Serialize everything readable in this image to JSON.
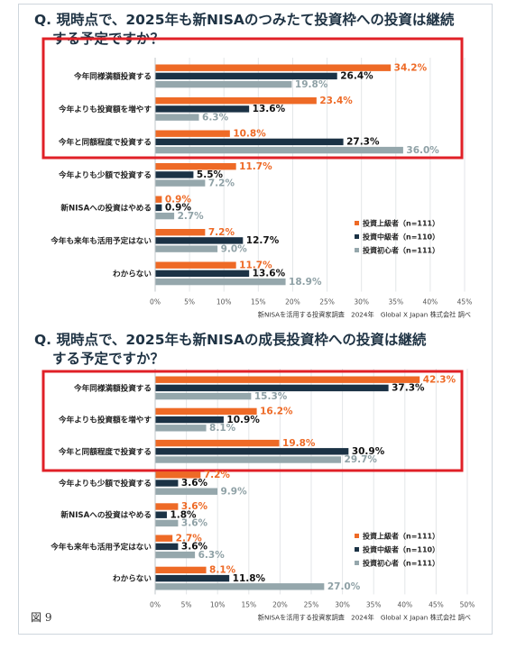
{
  "figure_label": "図 9",
  "colors": {
    "advanced": "#ee6a26",
    "intermediate": "#1b3245",
    "beginner": "#95a7ac",
    "highlight": "#e02027"
  },
  "chart_data": [
    {
      "type": "bar",
      "orientation": "horizontal",
      "title": "Q. 現時点で、2025年も新NISAのつみたて投資枠への投資は継続する予定ですか？",
      "title_lines": [
        "Q. 現時点で、2025年も新NISAのつみたて投資枠への投資は継続",
        "する予定ですか？"
      ],
      "categories": [
        "今年同様満額投資する",
        "今年よりも投資額を増やす",
        "今年と同額程度で投資する",
        "今年よりも少額で投資する",
        "新NISAへの投資はやめる",
        "今年も来年も活用予定はない",
        "わからない"
      ],
      "series": [
        {
          "name": "投資上級者（n=111）",
          "values": [
            34.2,
            23.4,
            10.8,
            11.7,
            0.9,
            7.2,
            11.7
          ],
          "labels": [
            "34.2%",
            "23.4%",
            "10.8%",
            "11.7%",
            "0.9%",
            "7.2%",
            "11.7%"
          ]
        },
        {
          "name": "投資中級者（n=110）",
          "values": [
            26.4,
            13.6,
            27.3,
            5.5,
            0.9,
            12.7,
            13.6
          ],
          "labels": [
            "26.4%",
            "13.6%",
            "27.3%",
            "5.5%",
            "0.9%",
            "12.7%",
            "13.6%"
          ]
        },
        {
          "name": "投資初心者（n=111）",
          "values": [
            19.8,
            6.3,
            36.0,
            7.2,
            2.7,
            9.0,
            18.9
          ],
          "labels": [
            "19.8%",
            "6.3%",
            "36.0%",
            "7.2%",
            "2.7%",
            "9.0%",
            "18.9%"
          ]
        }
      ],
      "xlim": [
        0,
        45
      ],
      "xticks": [
        "0%",
        "5%",
        "10%",
        "15%",
        "20%",
        "25%",
        "30%",
        "35%",
        "40%",
        "45%"
      ],
      "highlighted_categories": 3,
      "legend_position": "lower-right",
      "source": "新NISAを活用する投資家調査　2024年　Global X Japan 株式会社 調べ"
    },
    {
      "type": "bar",
      "orientation": "horizontal",
      "title": "Q. 現時点で、2025年も新NISAの成長投資枠への投資は継続する予定ですか？",
      "title_lines": [
        "Q. 現時点で、2025年も新NISAの成長投資枠への投資は継続",
        "する予定ですか？"
      ],
      "categories": [
        "今年同様満額投資する",
        "今年よりも投資額を増やす",
        "今年と同額程度で投資する",
        "今年よりも少額で投資する",
        "新NISAへの投資はやめる",
        "今年も来年も活用予定はない",
        "わからない"
      ],
      "series": [
        {
          "name": "投資上級者（n=111）",
          "values": [
            42.3,
            16.2,
            19.8,
            7.2,
            3.6,
            2.7,
            8.1
          ],
          "labels": [
            "42.3%",
            "16.2%",
            "19.8%",
            "7.2%",
            "3.6%",
            "2.7%",
            "8.1%"
          ]
        },
        {
          "name": "投資中級者（n=110）",
          "values": [
            37.3,
            10.9,
            30.9,
            3.6,
            1.8,
            3.6,
            11.8
          ],
          "labels": [
            "37.3%",
            "10.9%",
            "30.9%",
            "3.6%",
            "1.8%",
            "3.6%",
            "11.8%"
          ]
        },
        {
          "name": "投資初心者（n=111）",
          "values": [
            15.3,
            8.1,
            29.7,
            9.9,
            3.6,
            6.3,
            27.0
          ],
          "labels": [
            "15.3%",
            "8.1%",
            "29.7%",
            "9.9%",
            "3.6%",
            "6.3%",
            "27.0%"
          ]
        }
      ],
      "xlim": [
        0,
        50
      ],
      "xticks": [
        "0%",
        "5%",
        "10%",
        "15%",
        "20%",
        "25%",
        "30%",
        "35%",
        "40%",
        "45%",
        "50%"
      ],
      "highlighted_categories": 3,
      "legend_position": "lower-right",
      "source": "新NISAを活用する投資家調査　2024年　Global X Japan 株式会社 調べ"
    }
  ]
}
